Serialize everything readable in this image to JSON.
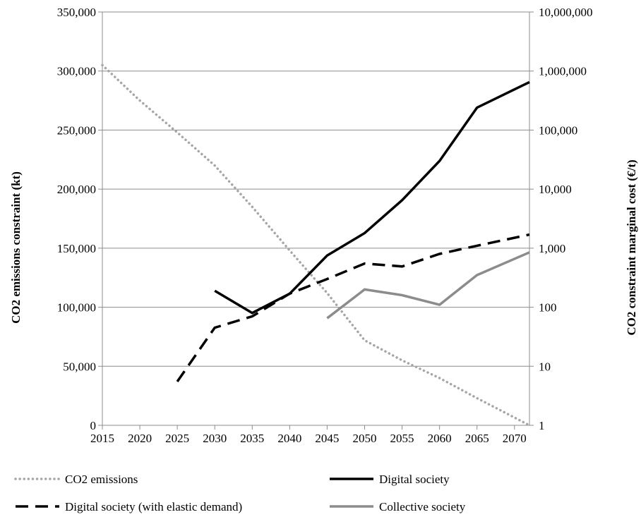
{
  "chart_data": {
    "type": "line",
    "x": [
      2015,
      2020,
      2025,
      2030,
      2035,
      2040,
      2045,
      2050,
      2055,
      2060,
      2065,
      2070
    ],
    "x_tick_labels": [
      "2015",
      "2020",
      "2025",
      "2030",
      "2035",
      "2040",
      "2045",
      "2050",
      "2055",
      "2060",
      "2065",
      "2070"
    ],
    "xlim": [
      2015,
      2072
    ],
    "ylabel_left": "CO2 emissions constraint (kt)",
    "ylabel_right": "CO2 constraint marginal cost (€/t)",
    "ylim_left": [
      0,
      350000
    ],
    "ylim_right": [
      1,
      10000000
    ],
    "right_axis_scale": "log",
    "left_tick_labels": [
      "0",
      "50,000",
      "100,000",
      "150,000",
      "200,000",
      "250,000",
      "300,000",
      "350,000"
    ],
    "right_tick_labels": [
      "1",
      "10",
      "100",
      "1,000",
      "10,000",
      "100,000",
      "1,000,000",
      "10,000,000"
    ],
    "grid": "horizontal",
    "legend_position": "bottom",
    "series": [
      {
        "name": "CO2 emissions",
        "axis": "left",
        "style": "dotted",
        "color": "#a6a6a6",
        "points": [
          [
            2015,
            305000
          ],
          [
            2020,
            275000
          ],
          [
            2025,
            248000
          ],
          [
            2030,
            220000
          ],
          [
            2035,
            185000
          ],
          [
            2040,
            148000
          ],
          [
            2045,
            112000
          ],
          [
            2050,
            72000
          ],
          [
            2055,
            55000
          ],
          [
            2060,
            40000
          ],
          [
            2065,
            23000
          ],
          [
            2072,
            0
          ]
        ]
      },
      {
        "name": "Digital society",
        "axis": "right",
        "style": "solid",
        "color": "#000000",
        "points": [
          [
            2030,
            190
          ],
          [
            2035,
            80
          ],
          [
            2040,
            170
          ],
          [
            2045,
            750
          ],
          [
            2050,
            1800
          ],
          [
            2055,
            6500
          ],
          [
            2060,
            30000
          ],
          [
            2065,
            240000
          ],
          [
            2072,
            650000
          ]
        ]
      },
      {
        "name": "Digital society (with elastic demand)",
        "axis": "right",
        "style": "dashed",
        "color": "#000000",
        "points": [
          [
            2025,
            5.5
          ],
          [
            2030,
            45
          ],
          [
            2035,
            70
          ],
          [
            2040,
            170
          ],
          [
            2045,
            300
          ],
          [
            2050,
            550
          ],
          [
            2055,
            490
          ],
          [
            2060,
            800
          ],
          [
            2065,
            1100
          ],
          [
            2072,
            1700
          ]
        ]
      },
      {
        "name": "Collective society",
        "axis": "right",
        "style": "solid",
        "color": "#8c8c8c",
        "points": [
          [
            2045,
            65
          ],
          [
            2050,
            200
          ],
          [
            2055,
            160
          ],
          [
            2060,
            110
          ],
          [
            2065,
            350
          ],
          [
            2072,
            850
          ]
        ]
      }
    ]
  }
}
